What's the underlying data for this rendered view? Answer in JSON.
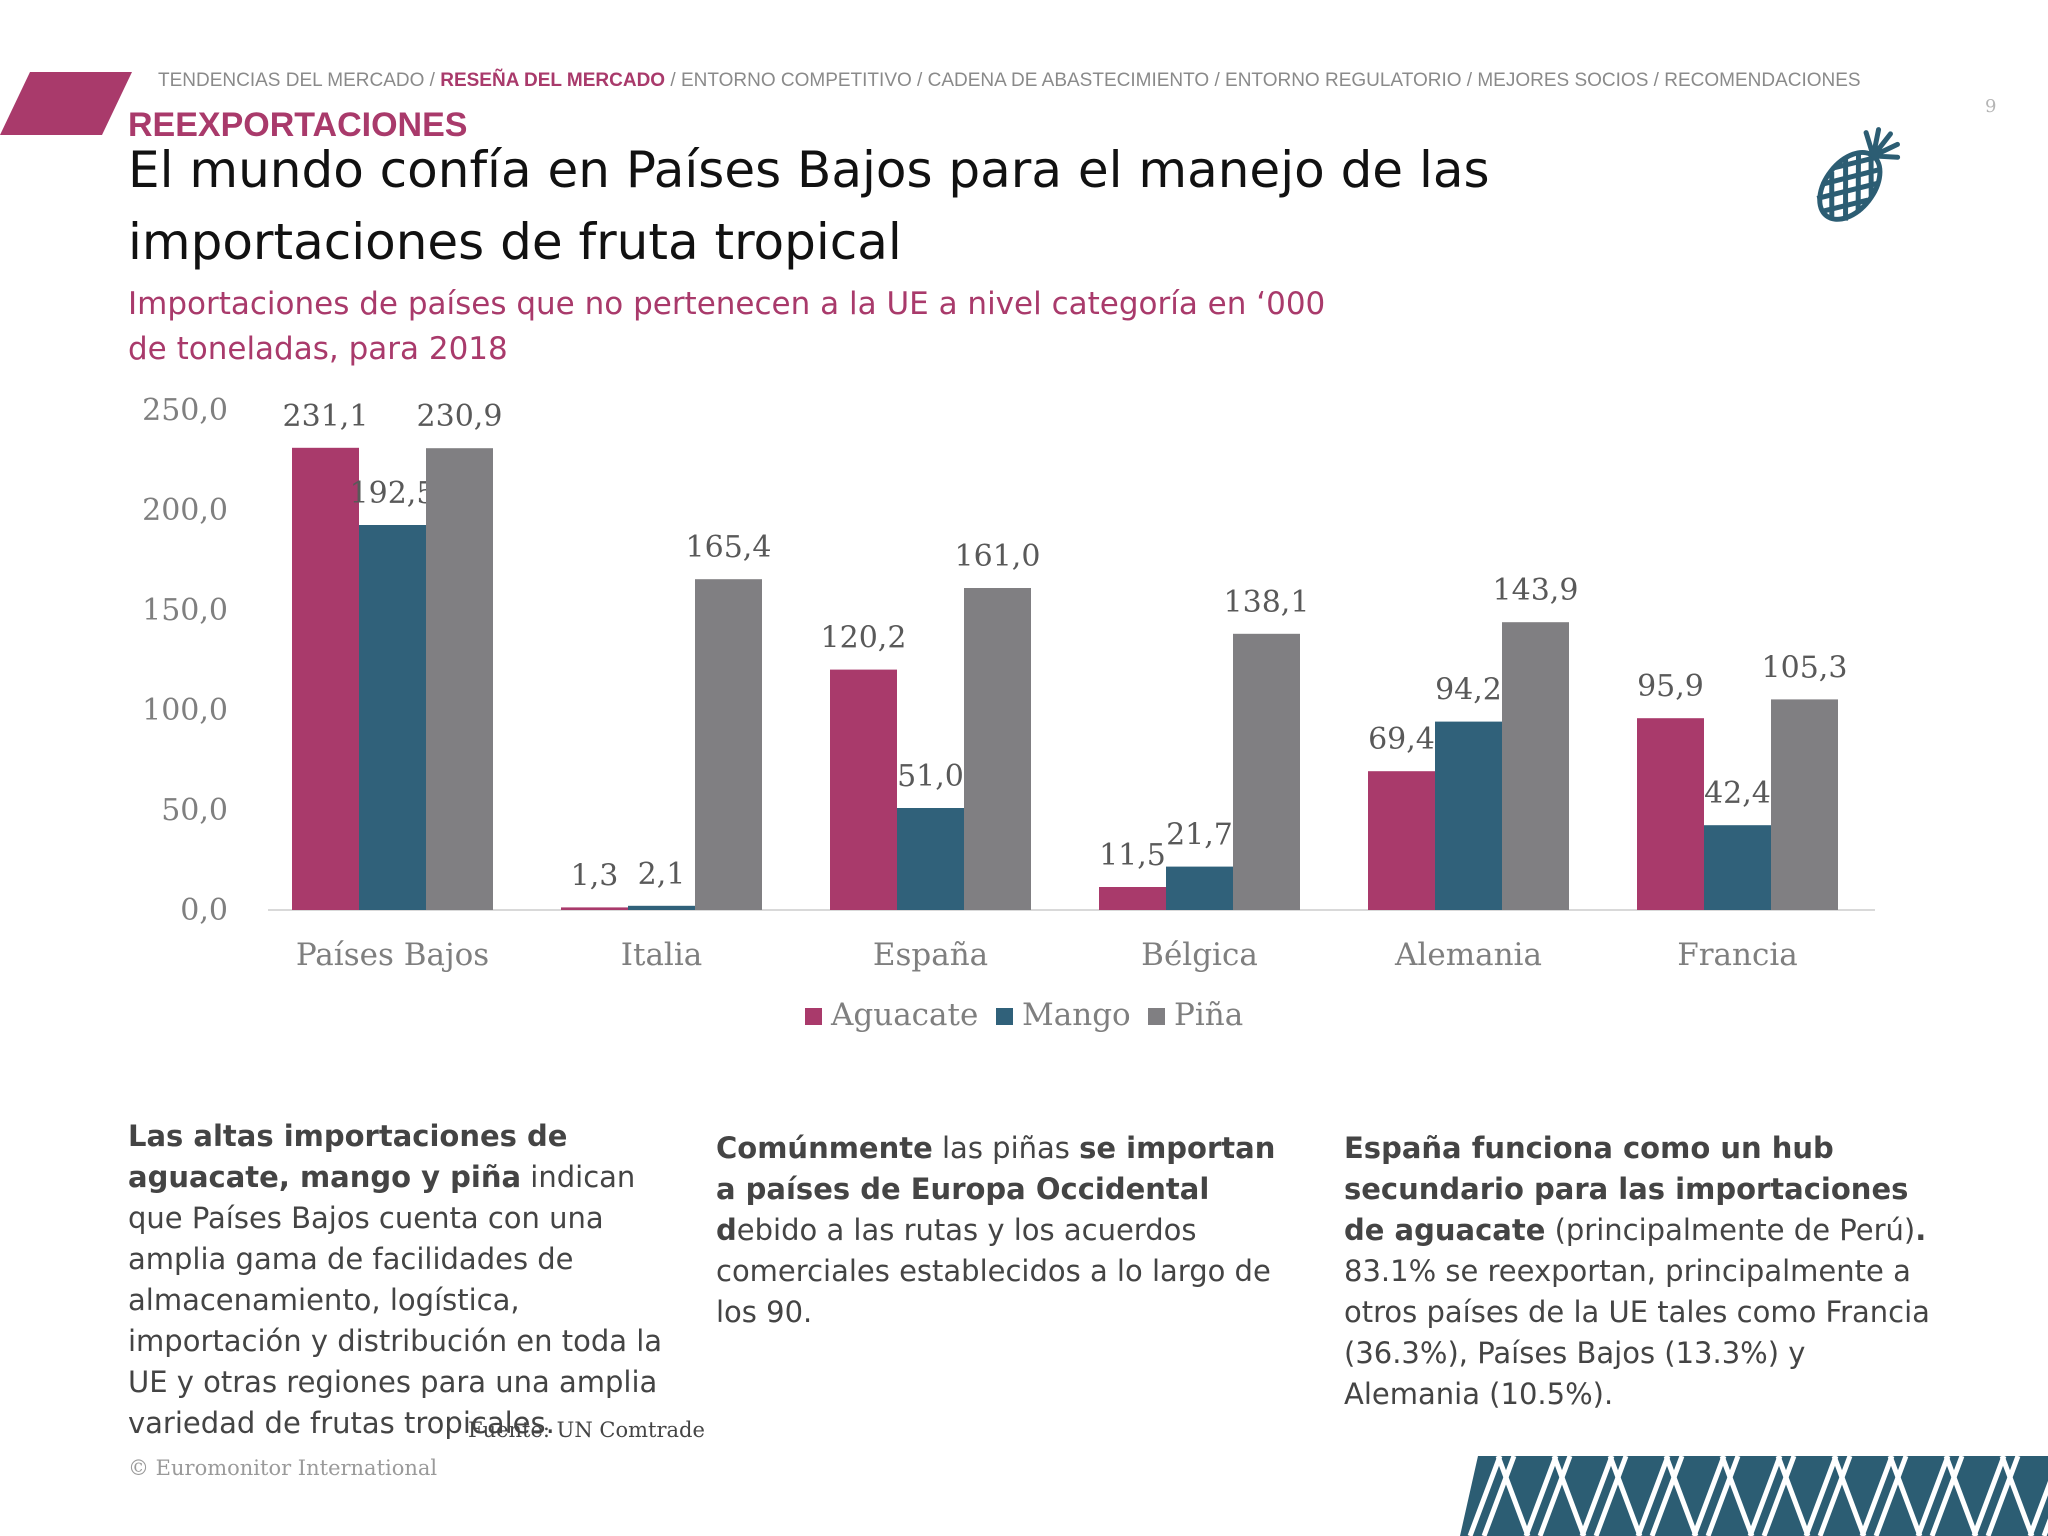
{
  "header": {
    "breadcrumb": [
      {
        "label": "TENDENCIAS DEL MERCADO",
        "active": false
      },
      {
        "label": "RESEÑA DEL MERCADO",
        "active": true
      },
      {
        "label": "ENTORNO COMPETITIVO",
        "active": false
      },
      {
        "label": "CADENA DE ABASTECIMIENTO",
        "active": false
      },
      {
        "label": "ENTORNO REGULATORIO",
        "active": false
      },
      {
        "label": "MEJORES SOCIOS",
        "active": false
      },
      {
        "label": "RECOMENDACIONES",
        "active": false
      }
    ],
    "page_number": "9",
    "section_label": "REEXPORTACIONES",
    "title": "El mundo confía en Países Bajos para el manejo de las importaciones de fruta tropical",
    "subtitle": "Importaciones de países que no pertenecen a la UE a nivel categoría en ‘000 de toneladas, para 2018",
    "decor_icon": "pineapple-icon"
  },
  "colors": {
    "accent": "#a93a6b",
    "aguacate": "#a93a6b",
    "mango": "#30617a",
    "pina": "#807f82",
    "icon": "#2c5d73"
  },
  "chart_data": {
    "type": "bar",
    "categories": [
      "Países Bajos",
      "Italia",
      "España",
      "Bélgica",
      "Alemania",
      "Francia"
    ],
    "series": [
      {
        "name": "Aguacate",
        "values": [
          231.1,
          1.3,
          120.2,
          11.5,
          69.4,
          95.9
        ],
        "labels": [
          "231,1",
          "1,3",
          "120,2",
          "11,5",
          "69,4",
          "95,9"
        ]
      },
      {
        "name": "Mango",
        "values": [
          192.5,
          2.1,
          51.0,
          21.7,
          94.2,
          42.4
        ],
        "labels": [
          "192,5",
          "2,1",
          "51,0",
          "21,7",
          "94,2",
          "42,4"
        ]
      },
      {
        "name": "Piña",
        "values": [
          230.9,
          165.4,
          161.0,
          138.1,
          143.9,
          105.3
        ],
        "labels": [
          "230,9",
          "165,4",
          "161,0",
          "138,1",
          "143,9",
          "105,3"
        ]
      }
    ],
    "ylim": [
      0,
      250
    ],
    "yticks": [
      "0,0",
      "50,0",
      "100,0",
      "150,0",
      "200,0",
      "250,0"
    ],
    "grid": false,
    "legend_position": "bottom"
  },
  "columns": [
    {
      "segments": [
        {
          "text": "Las altas importaciones de aguacate, mango y piña",
          "bold": true
        },
        {
          "text": " indican que Países Bajos cuenta con una amplia gama de facilidades de almacenamiento, logística, importación y distribución en toda la UE y otras regiones para una amplia variedad de frutas tropicales.",
          "bold": false
        }
      ]
    },
    {
      "segments": [
        {
          "text": "Comúnmente",
          "bold": true
        },
        {
          "text": " las piñas ",
          "bold": false
        },
        {
          "text": "se importan a países de Europa Occidental d",
          "bold": true
        },
        {
          "text": "ebido a las rutas y los acuerdos comerciales establecidos a lo largo de los 90.",
          "bold": false
        }
      ]
    },
    {
      "segments": [
        {
          "text": "España funciona como un hub secundario para las importaciones de aguacate",
          "bold": true
        },
        {
          "text": " (principalmente de Perú)",
          "bold": false
        },
        {
          "text": ".",
          "bold": true
        },
        {
          "text": " 83.1% se reexportan, principalmente a otros países de la UE tales como Francia (36.3%), Países Bajos (13.3%) y Alemania (10.5%).",
          "bold": false
        }
      ]
    }
  ],
  "source": "Fuente: UN Comtrade",
  "copyright": "© Euromonitor International"
}
